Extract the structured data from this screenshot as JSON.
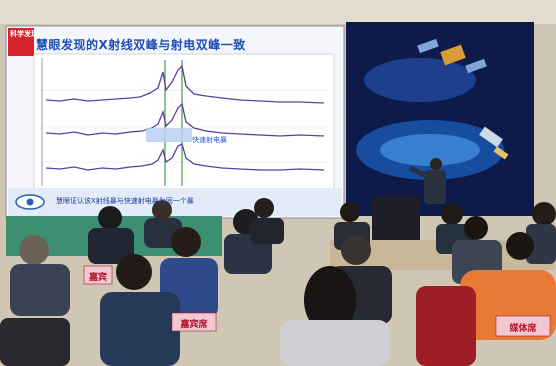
{
  "slide": {
    "title": "慧眼发现的X射线双峰与射电双峰一致",
    "badge": "科学发现",
    "chart_label": "快速射电暴",
    "caption": "慧眼证认该X射线暴与快速射电暴为同一个暴"
  },
  "signs": [
    {
      "text": "嘉宾"
    },
    {
      "text": "嘉宾席"
    },
    {
      "text": "媒体席"
    }
  ],
  "colors": {
    "slide_bg": "#f4f6fb",
    "slide_title": "#1e4fb0",
    "space_bg": "#0d1a4a",
    "sign_bg": "#f3c7d0",
    "sign_text": "#b0102a",
    "curve": "#5a3f9e",
    "peak_line": "#2fa54a"
  }
}
